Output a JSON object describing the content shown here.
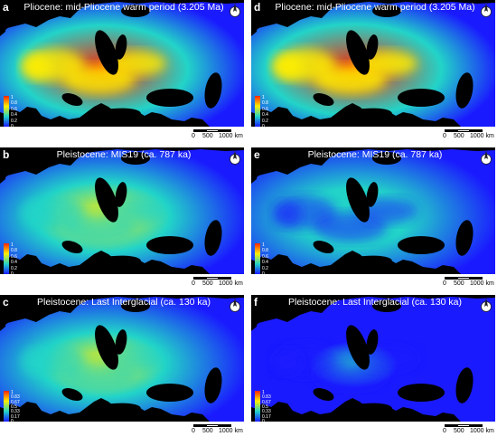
{
  "panels": [
    {
      "label": "a",
      "title": "Pliocene: mid-Pliocene warm period (3.205 Ma)",
      "legend": [
        "1",
        "0.8",
        "0.6",
        "0.4",
        "0.2",
        "0"
      ],
      "intensity": 0.95
    },
    {
      "label": "d",
      "title": "Pliocene: mid-Pliocene warm period (3.205 Ma)",
      "legend": [
        "1",
        "0.8",
        "0.6",
        "0.4",
        "0.2",
        "0"
      ],
      "intensity": 1.0
    },
    {
      "label": "b",
      "title": "Pleistocene: MIS19 (ca. 787 ka)",
      "legend": [
        "1",
        "0.8",
        "0.6",
        "0.4",
        "0.2",
        "0"
      ],
      "intensity": 0.6
    },
    {
      "label": "e",
      "title": "Pleistocene: MIS19 (ca. 787 ka)",
      "legend": [
        "1",
        "0.8",
        "0.6",
        "0.4",
        "0.2",
        "0"
      ],
      "intensity": 0.35
    },
    {
      "label": "c",
      "title": "Pleistocene: Last Interglacial (ca. 130 ka)",
      "legend": [
        "1",
        "0.83",
        "0.67",
        "0.5",
        "0.33",
        "0.17",
        "0"
      ],
      "intensity": 0.5
    },
    {
      "label": "f",
      "title": "Pleistocene: Last Interglacial (ca. 130 ka)",
      "legend": [
        "1",
        "0.83",
        "0.67",
        "0.5",
        "0.33",
        "0.17",
        "0"
      ],
      "intensity": 0.15
    }
  ],
  "scale_bar": {
    "ticks": [
      "0",
      "500",
      "1000 km"
    ]
  },
  "colors": {
    "ocean": "#000000",
    "land_low": "#1a1aff",
    "mid": "#22d4c8",
    "high": "#ffee00",
    "peak": "#ff2200"
  }
}
